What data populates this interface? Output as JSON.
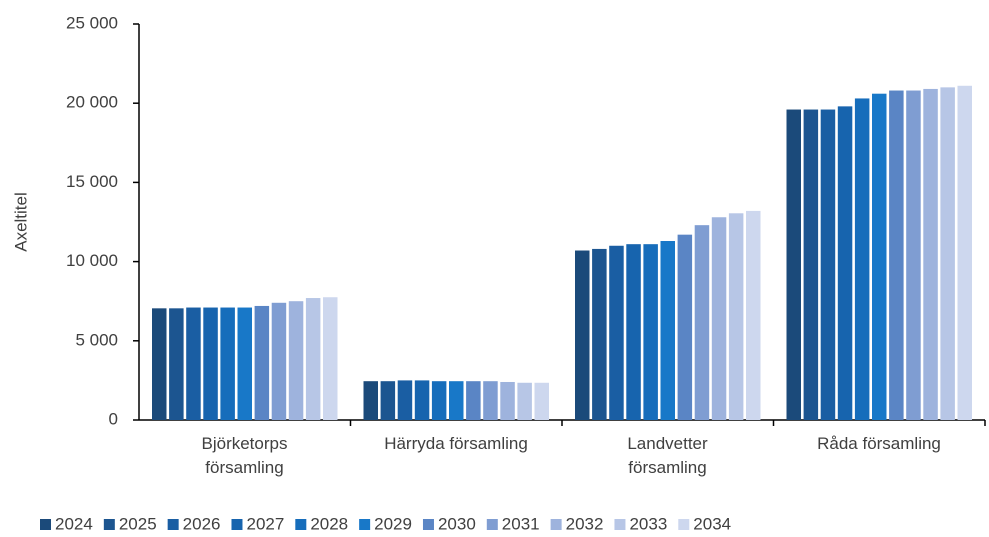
{
  "chart_data": {
    "type": "bar",
    "y_label": "Axeltitel",
    "categories": [
      "Björketorps\nförsamling",
      "Härryda församling",
      "Landvetter\nförsamling",
      "Råda församling"
    ],
    "series": [
      {
        "name": "2024",
        "color": "#1b4a7a",
        "values": [
          7050,
          2450,
          10700,
          19600
        ]
      },
      {
        "name": "2025",
        "color": "#1c5590",
        "values": [
          7050,
          2450,
          10800,
          19600
        ]
      },
      {
        "name": "2026",
        "color": "#1a5ea3",
        "values": [
          7100,
          2500,
          11000,
          19600
        ]
      },
      {
        "name": "2027",
        "color": "#1764ae",
        "values": [
          7100,
          2500,
          11100,
          19800
        ]
      },
      {
        "name": "2028",
        "color": "#166dbb",
        "values": [
          7100,
          2450,
          11100,
          20300
        ]
      },
      {
        "name": "2029",
        "color": "#1878c8",
        "values": [
          7100,
          2450,
          11300,
          20600
        ]
      },
      {
        "name": "2030",
        "color": "#5a85c5",
        "values": [
          7200,
          2450,
          11700,
          20800
        ]
      },
      {
        "name": "2031",
        "color": "#7f9dd2",
        "values": [
          7400,
          2450,
          12300,
          20800
        ]
      },
      {
        "name": "2032",
        "color": "#9eb3dd",
        "values": [
          7500,
          2400,
          12800,
          20900
        ]
      },
      {
        "name": "2033",
        "color": "#b7c6e6",
        "values": [
          7700,
          2350,
          13050,
          21000
        ]
      },
      {
        "name": "2034",
        "color": "#cdd7ee",
        "values": [
          7750,
          2350,
          13200,
          21100
        ]
      }
    ],
    "ylim": [
      0,
      25000
    ],
    "yticks": [
      0,
      {
        "value": 5000,
        "label": "5 000"
      },
      {
        "value": 10000,
        "label": "10 000"
      },
      {
        "value": 15000,
        "label": "15 000"
      },
      {
        "value": 20000,
        "label": "20 000"
      },
      {
        "value": 25000,
        "label": "25 000"
      }
    ],
    "legend": "bottom"
  }
}
